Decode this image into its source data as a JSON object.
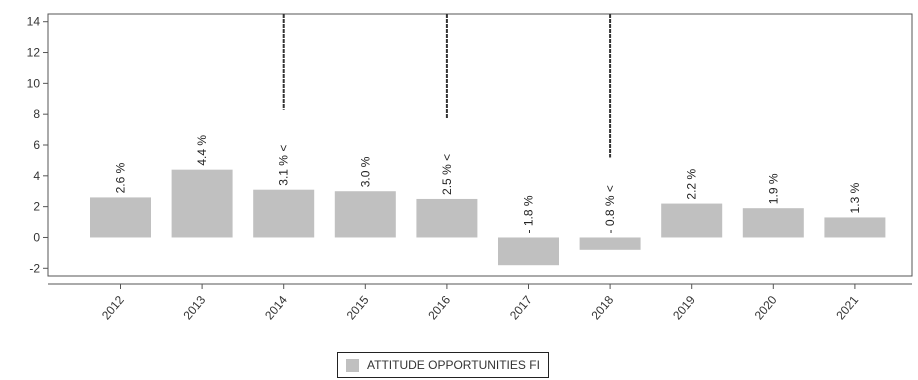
{
  "chart_data": {
    "type": "bar",
    "categories": [
      "2012",
      "2013",
      "2014",
      "2015",
      "2016",
      "2017",
      "2018",
      "2019",
      "2020",
      "2021"
    ],
    "series": [
      {
        "name": "ATTITUDE OPPORTUNITIES FI",
        "values": [
          2.6,
          4.4,
          3.1,
          3.0,
          2.5,
          -1.8,
          -0.8,
          2.2,
          1.9,
          1.3
        ],
        "labels": [
          "2.6 %",
          "4.4 %",
          "3.1 % <",
          "3.0 %",
          "2.5 % <",
          "- 1.8 %",
          "- 0.8 % <",
          "2.2 %",
          "1.9 %",
          "1.3 %"
        ]
      }
    ],
    "yticks": [
      "-2",
      "0",
      "2",
      "4",
      "6",
      "8",
      "10",
      "12",
      "14"
    ],
    "ylim": [
      -2.5,
      14.5
    ],
    "marker_categories": [
      "2014",
      "2016",
      "2018"
    ],
    "bar_color": "#c0c0c0",
    "marker_color": "#333333",
    "grid": false,
    "legend_position": "bottom-center"
  }
}
